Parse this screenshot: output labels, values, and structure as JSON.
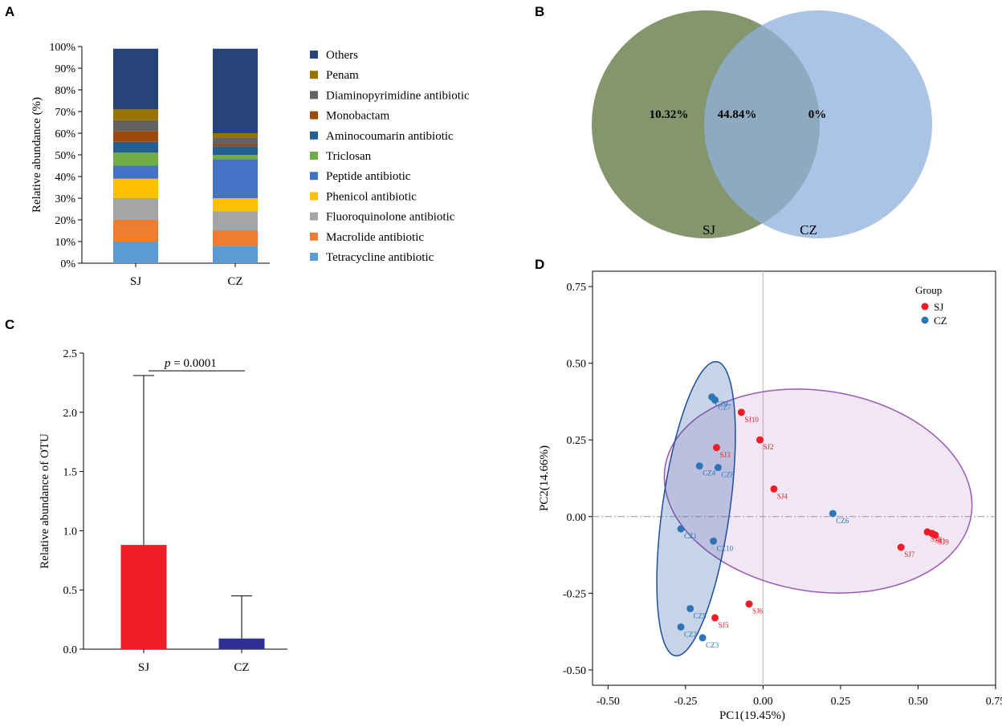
{
  "panels": {
    "A": {
      "letter": "A",
      "chart_data": {
        "type": "bar",
        "stacked": true,
        "categories": [
          "SJ",
          "CZ"
        ],
        "ylabel": "Relative abundance (%)",
        "ylim": [
          0,
          100
        ],
        "yticks": [
          "0%",
          "10%",
          "20%",
          "30%",
          "40%",
          "50%",
          "60%",
          "70%",
          "80%",
          "90%",
          "100%"
        ],
        "series": [
          {
            "name": "Tetracycline antibiotic",
            "color": "#5b9bd5",
            "values": [
              10,
              8
            ]
          },
          {
            "name": "Macrolide antibiotic",
            "color": "#ed7d31",
            "values": [
              10,
              7
            ]
          },
          {
            "name": "Fluoroquinolone antibiotic",
            "color": "#a5a5a5",
            "values": [
              10,
              9
            ]
          },
          {
            "name": "Phenicol antibiotic",
            "color": "#ffc000",
            "values": [
              9,
              6
            ]
          },
          {
            "name": "Peptide antibiotic",
            "color": "#4472c4",
            "values": [
              6,
              18
            ]
          },
          {
            "name": "Triclosan",
            "color": "#70ad47",
            "values": [
              6,
              2
            ]
          },
          {
            "name": "Aminocoumarin antibiotic",
            "color": "#255e91",
            "values": [
              5,
              4
            ]
          },
          {
            "name": "Monobactam",
            "color": "#9e480e",
            "values": [
              5,
              1
            ]
          },
          {
            "name": "Diaminopyrimidine antibiotic",
            "color": "#636363",
            "values": [
              5,
              3
            ]
          },
          {
            "name": "Penam",
            "color": "#997300",
            "values": [
              5,
              2
            ]
          },
          {
            "name": "Others",
            "color": "#264478",
            "values": [
              28,
              39
            ]
          }
        ]
      }
    },
    "B": {
      "letter": "B",
      "chart_data": {
        "type": "venn",
        "sets": [
          {
            "name": "SJ",
            "color": "#6d8452",
            "unique": "10.32%"
          },
          {
            "name": "CZ",
            "color": "#8fb0dc",
            "unique": "0%"
          }
        ],
        "intersection": "44.84%"
      }
    },
    "C": {
      "letter": "C",
      "chart_data": {
        "type": "bar",
        "categories": [
          "SJ",
          "CZ"
        ],
        "values": [
          0.88,
          0.09
        ],
        "errors": [
          1.43,
          0.36
        ],
        "colors": [
          "#ee1c25",
          "#2e3192"
        ],
        "ylabel": "Relative abundance of OTU",
        "ylim": [
          0,
          2.5
        ],
        "yticks": [
          "0.0",
          "0.5",
          "1.0",
          "1.5",
          "2.0",
          "2.5"
        ],
        "annotation_p": "p",
        "annotation_rest": "=  0.0001"
      }
    },
    "D": {
      "letter": "D",
      "chart_data": {
        "type": "scatter",
        "xlabel": "PC1(19.45%)",
        "ylabel": "PC2(14.66%)",
        "xlim": [
          -0.55,
          0.75
        ],
        "ylim": [
          -0.55,
          0.8
        ],
        "xticks": [
          "-0.50",
          "-0.25",
          "0.00",
          "0.25",
          "0.50",
          "0.75"
        ],
        "yticks": [
          "-0.50",
          "-0.25",
          "0.00",
          "0.25",
          "0.50",
          "0.75"
        ],
        "legend_title": "Group",
        "series": [
          {
            "name": "SJ",
            "color": "#ee1c25",
            "points": [
              {
                "label": "SJ1",
                "x": 0.545,
                "y": -0.055
              },
              {
                "label": "SJ2",
                "x": -0.01,
                "y": 0.25
              },
              {
                "label": "SJ3",
                "x": -0.15,
                "y": 0.225
              },
              {
                "label": "SJ4",
                "x": 0.035,
                "y": 0.09
              },
              {
                "label": "SJ5",
                "x": -0.155,
                "y": -0.33
              },
              {
                "label": "SJ6",
                "x": -0.045,
                "y": -0.285
              },
              {
                "label": "SJ7",
                "x": 0.445,
                "y": -0.1
              },
              {
                "label": "SJ8",
                "x": 0.53,
                "y": -0.05
              },
              {
                "label": "SJ9",
                "x": 0.555,
                "y": -0.06
              },
              {
                "label": "SJ10",
                "x": -0.07,
                "y": 0.34
              }
            ],
            "ellipse_color": "#9b59b6"
          },
          {
            "name": "CZ",
            "color": "#2e75b6",
            "points": [
              {
                "label": "CZ1",
                "x": -0.265,
                "y": -0.04
              },
              {
                "label": "CZ2",
                "x": -0.265,
                "y": -0.36
              },
              {
                "label": "CZ3",
                "x": -0.195,
                "y": -0.395
              },
              {
                "label": "CZ4",
                "x": -0.205,
                "y": 0.165
              },
              {
                "label": "CZ5",
                "x": -0.235,
                "y": -0.3
              },
              {
                "label": "CZ6",
                "x": 0.225,
                "y": 0.01
              },
              {
                "label": "CZ7",
                "x": -0.155,
                "y": 0.38
              },
              {
                "label": "CZ8",
                "x": -0.145,
                "y": 0.16
              },
              {
                "label": "CZ9",
                "x": -0.165,
                "y": 0.39
              },
              {
                "label": "CZ10",
                "x": -0.16,
                "y": -0.08
              }
            ],
            "ellipse_color": "#1f4e9c"
          }
        ]
      }
    }
  }
}
